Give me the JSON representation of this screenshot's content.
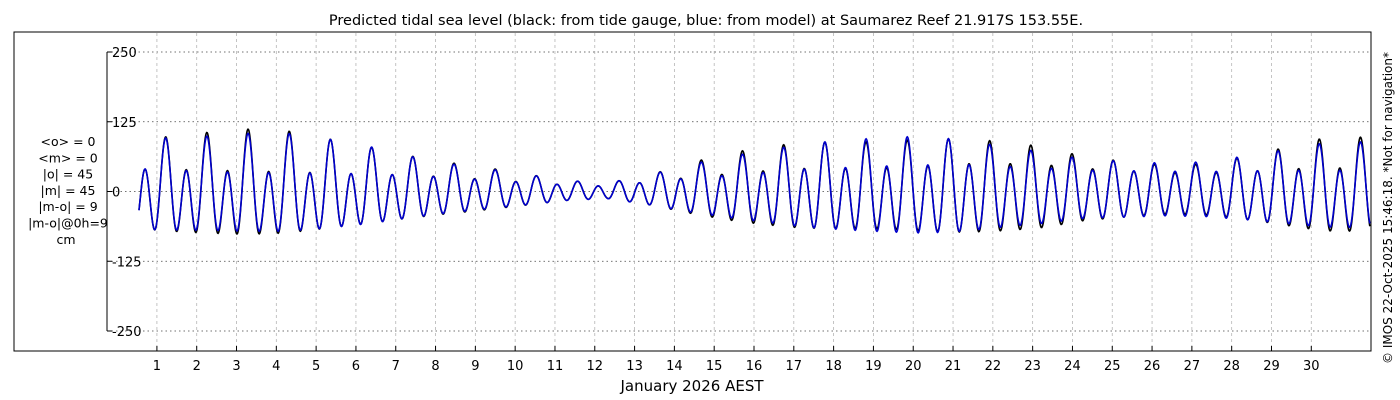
{
  "chart_data": {
    "type": "line",
    "title": "Predicted tidal sea level (black: from tide gauge, blue: from model) at Saumarez Reef 21.917S 153.55E.",
    "xlabel": "January 2026 AEST",
    "ylabel": "",
    "xlim": [
      0,
      31
    ],
    "ylim": [
      -250,
      250
    ],
    "yticks": [
      250,
      125,
      0,
      -125,
      -250
    ],
    "xticks": [
      "1",
      "2",
      "3",
      "4",
      "5",
      "6",
      "7",
      "8",
      "9",
      "10",
      "11",
      "12",
      "13",
      "14",
      "15",
      "16",
      "17",
      "18",
      "19",
      "20",
      "21",
      "22",
      "23",
      "24",
      "25",
      "26",
      "27",
      "28",
      "29",
      "30"
    ],
    "grid": true,
    "series": [
      {
        "name": "from tide gauge",
        "color": "#000000"
      },
      {
        "name": "from model",
        "color": "#0000cc"
      }
    ],
    "x_days": [
      0.05,
      0.8,
      1.8,
      2.8,
      3.8,
      4.8,
      5.8,
      6.8,
      7.8,
      8.8,
      9.8,
      10.8,
      11.8,
      12.8,
      13.8,
      14.8,
      15.8,
      16.8,
      17.8,
      18.8,
      19.8,
      20.8,
      21.8,
      22.8,
      23.8,
      24.8,
      25.8,
      26.8,
      27.8,
      28.8,
      29.8,
      30.95
    ],
    "amp_major_cm": [
      90,
      95,
      100,
      108,
      110,
      100,
      85,
      65,
      50,
      40,
      30,
      20,
      16,
      30,
      50,
      65,
      75,
      85,
      90,
      95,
      100,
      95,
      85,
      75,
      60,
      55,
      50,
      52,
      62,
      75,
      90,
      95
    ],
    "amp_minor_cm": [
      40,
      38,
      36,
      35,
      36,
      35,
      33,
      30,
      25,
      20,
      16,
      12,
      10,
      18,
      25,
      30,
      35,
      40,
      42,
      45,
      48,
      50,
      48,
      45,
      40,
      38,
      36,
      35,
      36,
      38,
      40,
      40
    ],
    "stats": [
      "<o> = 0",
      "<m> = 0",
      "|o| = 45",
      "|m| = 45",
      "|m-o| = 9",
      "|m-o|@0h=9",
      "cm"
    ],
    "side_note": "© IMOS 22-Oct-2025 15:46:18. *Not for navigation*"
  }
}
